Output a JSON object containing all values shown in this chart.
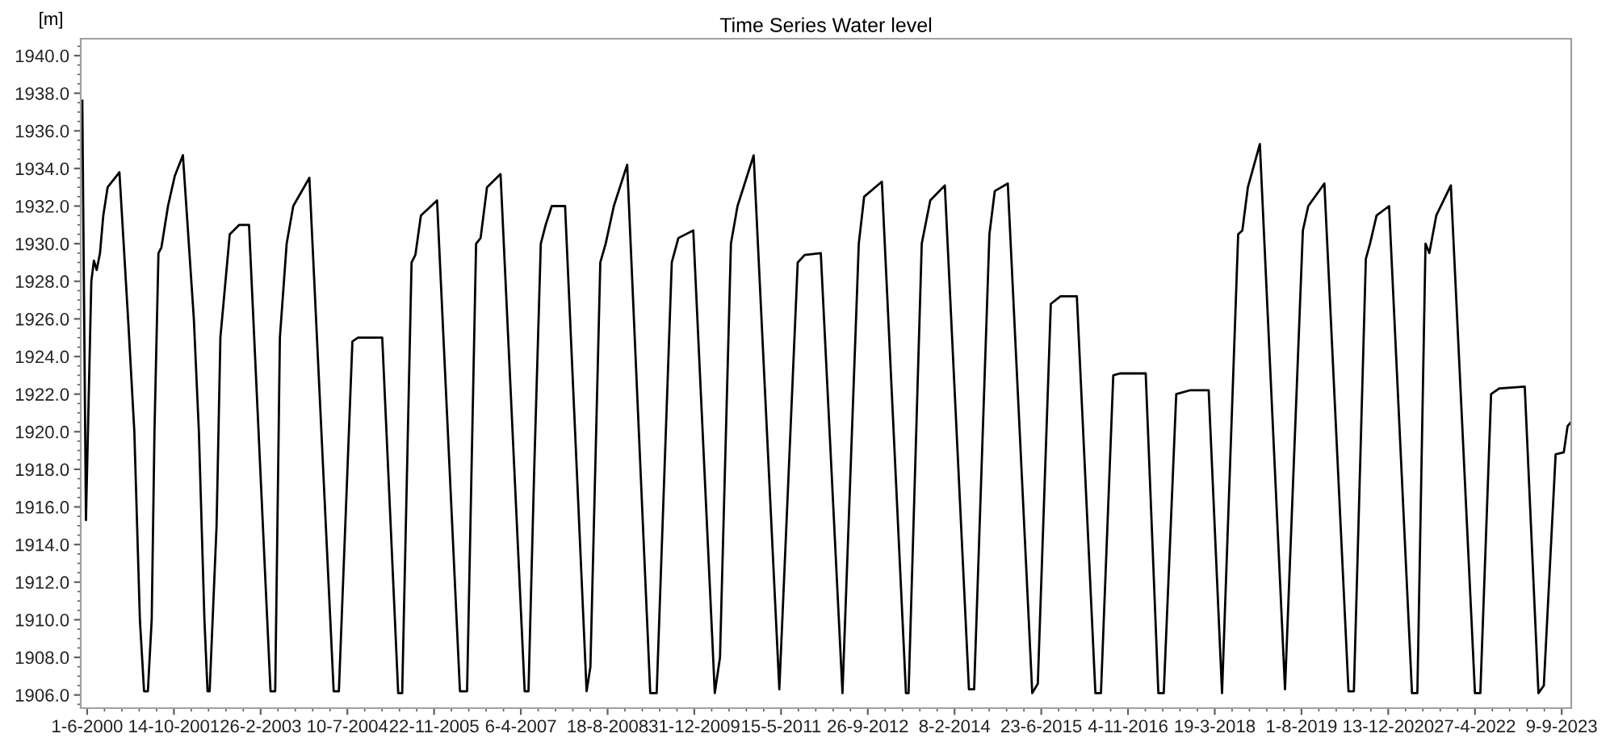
{
  "chart_data": {
    "type": "line",
    "title": "Time Series Water level",
    "ylabel": "[m]",
    "x": [
      "2000-05-04",
      "2000-05-25",
      "2000-06-25",
      "2000-07-10",
      "2000-07-26",
      "2000-08-14",
      "2000-09-02",
      "2000-09-27",
      "2000-12-04",
      "2001-01-23",
      "2001-02-28",
      "2001-04-01",
      "2001-04-25",
      "2001-05-17",
      "2001-06-08",
      "2001-06-24",
      "2001-07-17",
      "2001-08-03",
      "2001-09-10",
      "2001-10-19",
      "2001-12-05",
      "2002-02-06",
      "2002-03-07",
      "2002-04-08",
      "2002-04-26",
      "2002-05-08",
      "2002-06-17",
      "2002-07-09",
      "2002-09-01",
      "2002-10-26",
      "2002-12-21",
      "2003-04-24",
      "2003-05-21",
      "2003-06-17",
      "2003-07-26",
      "2003-09-02",
      "2003-12-04",
      "2004-04-22",
      "2004-05-22",
      "2004-08-08",
      "2004-09-09",
      "2005-01-27",
      "2005-04-29",
      "2005-05-22",
      "2005-07-15",
      "2005-08-06",
      "2005-09-07",
      "2005-12-09",
      "2006-04-20",
      "2006-05-31",
      "2006-07-22",
      "2006-08-17",
      "2006-09-23",
      "2006-12-10",
      "2007-04-28",
      "2007-05-20",
      "2007-06-22",
      "2007-07-30",
      "2007-08-27",
      "2007-10-01",
      "2007-12-17",
      "2008-04-19",
      "2008-05-11",
      "2008-07-07",
      "2008-08-07",
      "2008-09-23",
      "2008-12-09",
      "2009-04-21",
      "2009-05-28",
      "2009-08-23",
      "2009-09-30",
      "2009-12-25",
      "2010-04-28",
      "2010-05-28",
      "2010-07-30",
      "2010-09-06",
      "2010-12-08",
      "2011-05-05",
      "2011-08-19",
      "2011-09-28",
      "2011-12-30",
      "2012-05-03",
      "2012-08-05",
      "2012-09-05",
      "2012-12-16",
      "2013-05-04",
      "2013-05-19",
      "2013-08-03",
      "2013-09-21",
      "2013-12-14",
      "2014-05-02",
      "2014-06-01",
      "2014-08-28",
      "2014-09-28",
      "2014-12-12",
      "2015-05-02",
      "2015-06-03",
      "2015-08-17",
      "2015-10-12",
      "2016-01-14",
      "2016-04-30",
      "2016-06-01",
      "2016-08-11",
      "2016-09-18",
      "2017-02-14",
      "2017-04-28",
      "2017-05-29",
      "2017-08-09",
      "2017-10-26",
      "2018-02-12",
      "2018-04-30",
      "2018-08-01",
      "2018-08-25",
      "2018-09-26",
      "2018-12-04",
      "2019-04-28",
      "2019-08-09",
      "2019-09-09",
      "2019-12-11",
      "2020-04-28",
      "2020-05-29",
      "2020-08-06",
      "2020-08-30",
      "2020-10-07",
      "2020-12-18",
      "2021-04-29",
      "2021-05-30",
      "2021-07-16",
      "2021-08-07",
      "2021-09-16",
      "2021-12-09",
      "2022-04-27",
      "2022-05-28",
      "2022-07-29",
      "2022-09-14",
      "2023-02-08",
      "2023-04-28",
      "2023-05-29",
      "2023-08-05",
      "2023-09-21",
      "2023-10-13",
      "2023-11-01"
    ],
    "series": [
      {
        "color": "#000000",
        "values": [
          1937.6,
          1915.3,
          1928,
          1929.1,
          1928.6,
          1929.5,
          1931.5,
          1933,
          1933.8,
          1926,
          1920,
          1910,
          1906.2,
          1906.2,
          1910,
          1920,
          1929.5,
          1929.8,
          1932,
          1933.6,
          1934.7,
          1926,
          1920,
          1910,
          1906.2,
          1906.2,
          1915,
          1925,
          1930.5,
          1931,
          1931,
          1906.2,
          1906.2,
          1925,
          1930,
          1932,
          1933.5,
          1906.2,
          1906.2,
          1924.8,
          1925,
          1925,
          1906.1,
          1906.1,
          1929,
          1929.4,
          1931.5,
          1932.3,
          1906.2,
          1906.2,
          1930,
          1930.3,
          1933,
          1933.7,
          1906.2,
          1906.2,
          1918,
          1930,
          1931,
          1932,
          1932,
          1906.2,
          1907.5,
          1929,
          1930,
          1932,
          1934.2,
          1906.1,
          1906.1,
          1929,
          1930.3,
          1930.7,
          1906.1,
          1908,
          1930,
          1932,
          1934.7,
          1906.3,
          1929,
          1929.4,
          1929.5,
          1906.1,
          1930,
          1932.5,
          1933.3,
          1906.1,
          1906.1,
          1930,
          1932.3,
          1933.1,
          1906.3,
          1906.3,
          1930.5,
          1932.8,
          1933.2,
          1906.1,
          1906.6,
          1926.8,
          1927.2,
          1927.2,
          1906.1,
          1906.1,
          1923,
          1923.1,
          1923.1,
          1906.1,
          1906.1,
          1922,
          1922.2,
          1922.2,
          1906.1,
          1930.5,
          1930.7,
          1933,
          1935.3,
          1906.3,
          1930.7,
          1932,
          1933.2,
          1906.2,
          1906.2,
          1929.2,
          1930,
          1931.5,
          1932,
          1906.1,
          1906.1,
          1930,
          1929.5,
          1931.5,
          1933.1,
          1906.1,
          1906.1,
          1922,
          1922.3,
          1922.4,
          1906.1,
          1906.5,
          1918.8,
          1918.9,
          1920.3,
          1920.5
        ]
      }
    ],
    "xlim": [
      "2000-04-25",
      "2023-11-03"
    ],
    "xticks": [
      {
        "value": "2000-06-01",
        "label": "1-6-2000"
      },
      {
        "value": "2001-10-14",
        "label": "14-10-2001"
      },
      {
        "value": "2003-02-26",
        "label": "26-2-2003"
      },
      {
        "value": "2004-07-10",
        "label": "10-7-2004"
      },
      {
        "value": "2005-11-22",
        "label": "22-11-2005"
      },
      {
        "value": "2007-04-06",
        "label": "6-4-2007"
      },
      {
        "value": "2008-08-18",
        "label": "18-8-2008"
      },
      {
        "value": "2009-12-31",
        "label": "31-12-2009"
      },
      {
        "value": "2011-05-15",
        "label": "15-5-2011"
      },
      {
        "value": "2012-09-26",
        "label": "26-9-2012"
      },
      {
        "value": "2014-02-08",
        "label": "8-2-2014"
      },
      {
        "value": "2015-06-23",
        "label": "23-6-2015"
      },
      {
        "value": "2016-11-04",
        "label": "4-11-2016"
      },
      {
        "value": "2018-03-19",
        "label": "19-3-2018"
      },
      {
        "value": "2019-08-01",
        "label": "1-8-2019"
      },
      {
        "value": "2020-12-13",
        "label": "13-12-2020"
      },
      {
        "value": "2022-04-27",
        "label": "27-4-2022"
      },
      {
        "value": "2023-09-09",
        "label": "9-9-2023"
      }
    ],
    "ylim": [
      1905.3,
      1940.9
    ],
    "yticks": [
      {
        "value": 1906,
        "label": "1906.0"
      },
      {
        "value": 1908,
        "label": "1908.0"
      },
      {
        "value": 1910,
        "label": "1910.0"
      },
      {
        "value": 1912,
        "label": "1912.0"
      },
      {
        "value": 1914,
        "label": "1914.0"
      },
      {
        "value": 1916,
        "label": "1916.0"
      },
      {
        "value": 1918,
        "label": "1918.0"
      },
      {
        "value": 1920,
        "label": "1920.0"
      },
      {
        "value": 1922,
        "label": "1922.0"
      },
      {
        "value": 1924,
        "label": "1924.0"
      },
      {
        "value": 1926,
        "label": "1926.0"
      },
      {
        "value": 1928,
        "label": "1928.0"
      },
      {
        "value": 1930,
        "label": "1930.0"
      },
      {
        "value": 1932,
        "label": "1932.0"
      },
      {
        "value": 1934,
        "label": "1934.0"
      },
      {
        "value": 1936,
        "label": "1936.0"
      },
      {
        "value": 1938,
        "label": "1938.0"
      },
      {
        "value": 1940,
        "label": "1940.0"
      }
    ],
    "grid": false,
    "marker": "none",
    "line_style": "solid"
  }
}
